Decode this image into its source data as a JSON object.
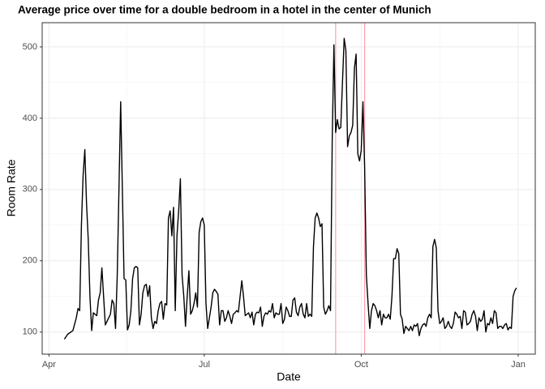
{
  "chart_data": {
    "type": "line",
    "title": "Average price over time for a double bedroom in a hotel in the center of Munich",
    "x_label": "Date",
    "y_label": "Room Rate",
    "x": [
      9,
      11,
      14,
      16,
      17,
      18,
      19,
      20,
      21,
      22,
      23,
      24,
      25,
      26,
      28,
      29,
      30,
      31,
      32,
      33,
      35,
      36,
      37,
      38,
      39,
      40,
      41,
      42,
      43,
      44,
      45,
      46,
      47,
      48,
      49,
      50,
      51,
      52,
      53,
      54,
      55,
      56,
      57,
      58,
      59,
      60,
      61,
      62,
      63,
      64,
      65,
      66,
      67,
      68,
      69,
      70,
      71,
      72,
      73,
      74,
      75,
      76,
      77,
      78,
      79,
      80,
      81,
      82,
      83,
      84,
      85,
      86,
      87,
      88,
      89,
      90,
      91,
      92,
      93,
      94,
      95,
      96,
      97,
      98,
      99,
      100,
      101,
      102,
      103,
      104,
      105,
      106,
      107,
      108,
      109,
      110,
      111,
      112,
      113,
      114,
      115,
      116,
      117,
      118,
      119,
      120,
      121,
      122,
      123,
      124,
      125,
      126,
      127,
      128,
      129,
      130,
      131,
      132,
      133,
      134,
      135,
      136,
      137,
      138,
      139,
      140,
      141,
      142,
      143,
      144,
      145,
      146,
      147,
      148,
      149,
      150,
      151,
      152,
      153,
      154,
      155,
      156,
      157,
      158,
      159,
      160,
      161,
      162,
      163,
      164,
      165,
      166,
      167,
      168,
      169,
      170,
      171,
      172,
      173,
      174,
      175,
      176,
      177,
      178,
      179,
      180,
      181,
      182,
      183,
      184,
      185,
      186,
      187,
      188,
      189,
      190,
      191,
      192,
      193,
      194,
      195,
      196,
      197,
      198,
      199,
      200,
      201,
      202,
      203,
      204,
      205,
      206,
      207,
      208,
      209,
      210,
      211,
      212,
      213,
      214,
      215,
      216,
      217,
      218,
      219,
      220,
      221,
      222,
      223,
      224,
      225,
      226,
      227,
      228,
      229,
      230,
      231,
      232,
      233,
      234,
      235,
      236,
      237,
      238,
      239,
      240,
      241,
      242,
      243,
      244,
      245,
      246,
      247,
      248,
      249,
      250,
      251,
      252,
      253,
      254,
      255,
      256,
      257,
      258,
      259,
      260,
      261,
      262,
      263,
      264,
      265,
      266,
      267,
      268,
      269,
      270,
      271,
      272,
      273,
      274
    ],
    "values": [
      90,
      97,
      102,
      120,
      133,
      130,
      250,
      320,
      356,
      280,
      230,
      150,
      102,
      127,
      123,
      145,
      155,
      190,
      150,
      110,
      120,
      125,
      145,
      140,
      105,
      180,
      300,
      423,
      300,
      175,
      173,
      103,
      110,
      130,
      175,
      190,
      192,
      190,
      110,
      125,
      155,
      165,
      167,
      150,
      165,
      120,
      105,
      115,
      112,
      130,
      140,
      143,
      118,
      140,
      138,
      260,
      270,
      235,
      275,
      130,
      235,
      270,
      315,
      180,
      150,
      108,
      150,
      186,
      125,
      130,
      140,
      155,
      135,
      240,
      255,
      260,
      250,
      140,
      105,
      120,
      135,
      155,
      160,
      157,
      153,
      110,
      130,
      130,
      115,
      120,
      130,
      122,
      112,
      125,
      127,
      130,
      128,
      150,
      172,
      150,
      123,
      125,
      127,
      120,
      128,
      110,
      125,
      128,
      127,
      135,
      108,
      122,
      127,
      125,
      130,
      128,
      140,
      120,
      127,
      125,
      125,
      140,
      112,
      118,
      135,
      130,
      122,
      122,
      145,
      148,
      128,
      123,
      135,
      140,
      125,
      120,
      140,
      122,
      125,
      122,
      220,
      260,
      267,
      260,
      248,
      252,
      135,
      125,
      130,
      137,
      130,
      370,
      503,
      380,
      398,
      385,
      387,
      450,
      512,
      495,
      360,
      375,
      380,
      390,
      470,
      490,
      350,
      340,
      355,
      423,
      330,
      180,
      140,
      105,
      130,
      140,
      137,
      130,
      120,
      130,
      110,
      125,
      120,
      120,
      125,
      118,
      150,
      203,
      203,
      217,
      210,
      125,
      118,
      98,
      108,
      105,
      102,
      108,
      102,
      110,
      108,
      112,
      95,
      105,
      110,
      112,
      108,
      120,
      125,
      120,
      220,
      230,
      218,
      130,
      112,
      115,
      120,
      105,
      108,
      115,
      108,
      105,
      112,
      128,
      125,
      120,
      122,
      105,
      130,
      128,
      110,
      112,
      115,
      125,
      130,
      122,
      102,
      120,
      115,
      118,
      130,
      100,
      112,
      110,
      120,
      112,
      130,
      127,
      105,
      108,
      108,
      105,
      110,
      112,
      103,
      107,
      105,
      150,
      158,
      162
    ],
    "color": "#000000",
    "vlines": [
      168,
      185
    ],
    "vline_color": "#ffa0a8",
    "xlim": [
      -4,
      285
    ],
    "xticks": [
      {
        "value": 0,
        "label": "Apr"
      },
      {
        "value": 91,
        "label": "Jul"
      },
      {
        "value": 183,
        "label": "Oct"
      },
      {
        "value": 275,
        "label": "Jan"
      }
    ],
    "ylim": [
      69,
      534
    ],
    "yticks": [
      100,
      200,
      300,
      400,
      500
    ],
    "grid": true
  }
}
